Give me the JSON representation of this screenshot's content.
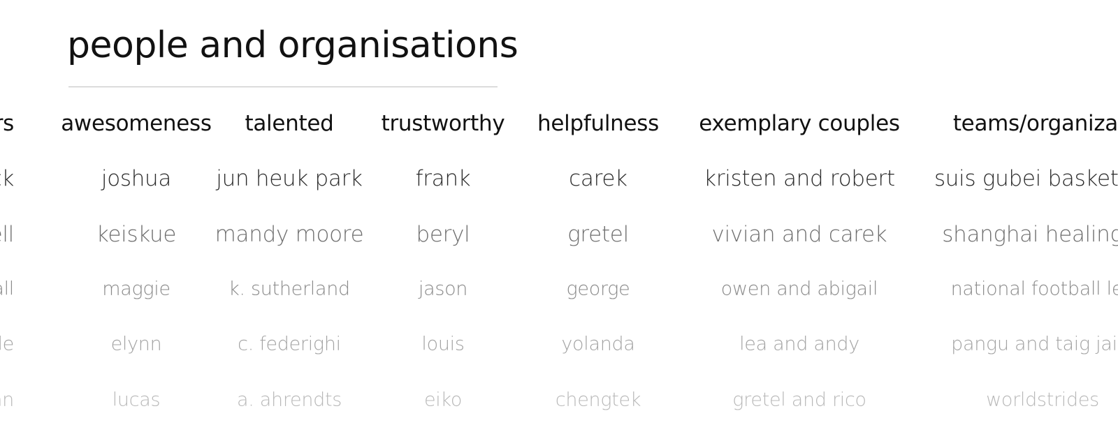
{
  "title": "people and organisations",
  "columns": [
    {
      "header": "ors",
      "rows": [
        "rlock",
        "ndell",
        "shall",
        "valle",
        "oran"
      ]
    },
    {
      "header": "awesomeness",
      "rows": [
        "joshua",
        "keiskue",
        "maggie",
        "elynn",
        "lucas"
      ]
    },
    {
      "header": "talented",
      "rows": [
        "jun heuk park",
        "mandy moore",
        "k. sutherland",
        "c. federighi",
        "a. ahrendts"
      ]
    },
    {
      "header": "trustworthy",
      "rows": [
        "frank",
        "beryl",
        "jason",
        "louis",
        "eiko"
      ]
    },
    {
      "header": "helpfulness",
      "rows": [
        "carek",
        "gretel",
        "george",
        "yolanda",
        "chengtek"
      ]
    },
    {
      "header": "exemplary couples",
      "rows": [
        "kristen and robert",
        "vivian and carek",
        "owen and abigail",
        "lea and andy",
        "gretel and rico"
      ]
    },
    {
      "header": "teams/organizati",
      "rows": [
        "suis gubei basketbal",
        "shanghai healing h",
        "national football lea",
        "pangu and taig jailb",
        "worldstrides"
      ]
    }
  ]
}
